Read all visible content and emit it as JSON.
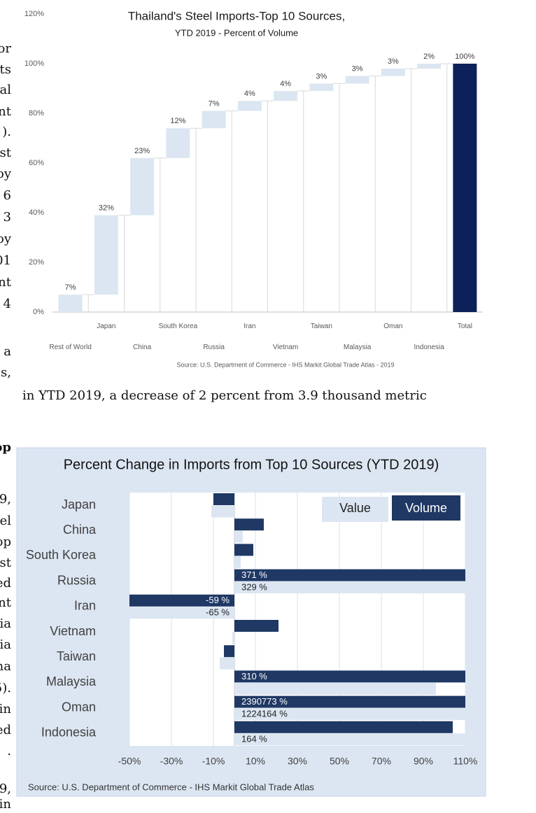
{
  "document": {
    "fragments": [
      "or",
      "ts",
      "al",
      "nt",
      ").",
      "st",
      "oy",
      "6",
      "3",
      "oy",
      "01",
      "nt",
      "4",
      "a",
      "s,",
      "in YTD 2019, a decrease of 2 percent from 3.9 thousand metric",
      "op",
      "9,",
      "el",
      "op",
      "st",
      "ed",
      "nt",
      "ia",
      "ia",
      "na",
      "5).",
      "in",
      "ed",
      ".",
      "9,",
      "in"
    ]
  },
  "chart_data": [
    {
      "type": "waterfall",
      "title": "Thailand's Steel Imports-Top 10 Sources,",
      "subtitle": "YTD 2019 - Percent of Volume",
      "categories": [
        "Rest of World",
        "Japan",
        "China",
        "South Korea",
        "Russia",
        "Iran",
        "Vietnam",
        "Taiwan",
        "Malaysia",
        "Oman",
        "Indonesia",
        "Total"
      ],
      "values": [
        7,
        32,
        23,
        12,
        7,
        4,
        4,
        3,
        3,
        3,
        2,
        100
      ],
      "value_labels": [
        "7%",
        "32%",
        "23%",
        "12%",
        "7%",
        "4%",
        "4%",
        "3%",
        "3%",
        "3%",
        "2%",
        "100%"
      ],
      "color": "#dce6f2",
      "total_color": "#0c2159",
      "ylim": [
        0,
        120
      ],
      "yticks": [
        {
          "value": 0,
          "label": "0%"
        },
        {
          "value": 20,
          "label": "20%"
        },
        {
          "value": 40,
          "label": "40%"
        },
        {
          "value": 60,
          "label": "60%"
        },
        {
          "value": 80,
          "label": "80%"
        },
        {
          "value": 100,
          "label": "100%"
        },
        {
          "value": 120,
          "label": "120%"
        }
      ],
      "source": "Source: U.S. Department of Commerce - IHS Markit Global Trade Atlas - 2019"
    },
    {
      "type": "hbar",
      "title": "Percent Change in Imports from Top 10 Sources (YTD 2019)",
      "categories": [
        "Japan",
        "China",
        "South Korea",
        "Russia",
        "Iran",
        "Vietnam",
        "Taiwan",
        "Malaysia",
        "Oman",
        "Indonesia"
      ],
      "series": [
        {
          "name": "Value",
          "color": "#dce6f2",
          "values": [
            -11,
            4,
            3,
            329,
            -65,
            -1,
            -7,
            96,
            1224164,
            164
          ],
          "value_labels": [
            null,
            null,
            null,
            "329 %",
            "-65 %",
            null,
            null,
            null,
            "1224164 %",
            "164 %"
          ]
        },
        {
          "name": "Volume",
          "color": "#1f3864",
          "values": [
            -10,
            14,
            9,
            371,
            -59,
            21,
            -5,
            310,
            2390773,
            104
          ],
          "value_labels": [
            null,
            null,
            null,
            "371 %",
            "-59 %",
            null,
            null,
            "310 %",
            "2390773 %",
            null
          ]
        }
      ],
      "xlim": [
        -50,
        110
      ],
      "xticks": [
        {
          "value": -50,
          "label": "-50%"
        },
        {
          "value": -30,
          "label": "-30%"
        },
        {
          "value": -10,
          "label": "-10%"
        },
        {
          "value": 10,
          "label": "10%"
        },
        {
          "value": 30,
          "label": "30%"
        },
        {
          "value": 50,
          "label": "50%"
        },
        {
          "value": 70,
          "label": "70%"
        },
        {
          "value": 90,
          "label": "90%"
        },
        {
          "value": 110,
          "label": "110%"
        }
      ],
      "grid": true,
      "legend": "upper right",
      "source": "Source: U.S. Department of Commerce - IHS Markit Global Trade Atlas"
    }
  ]
}
